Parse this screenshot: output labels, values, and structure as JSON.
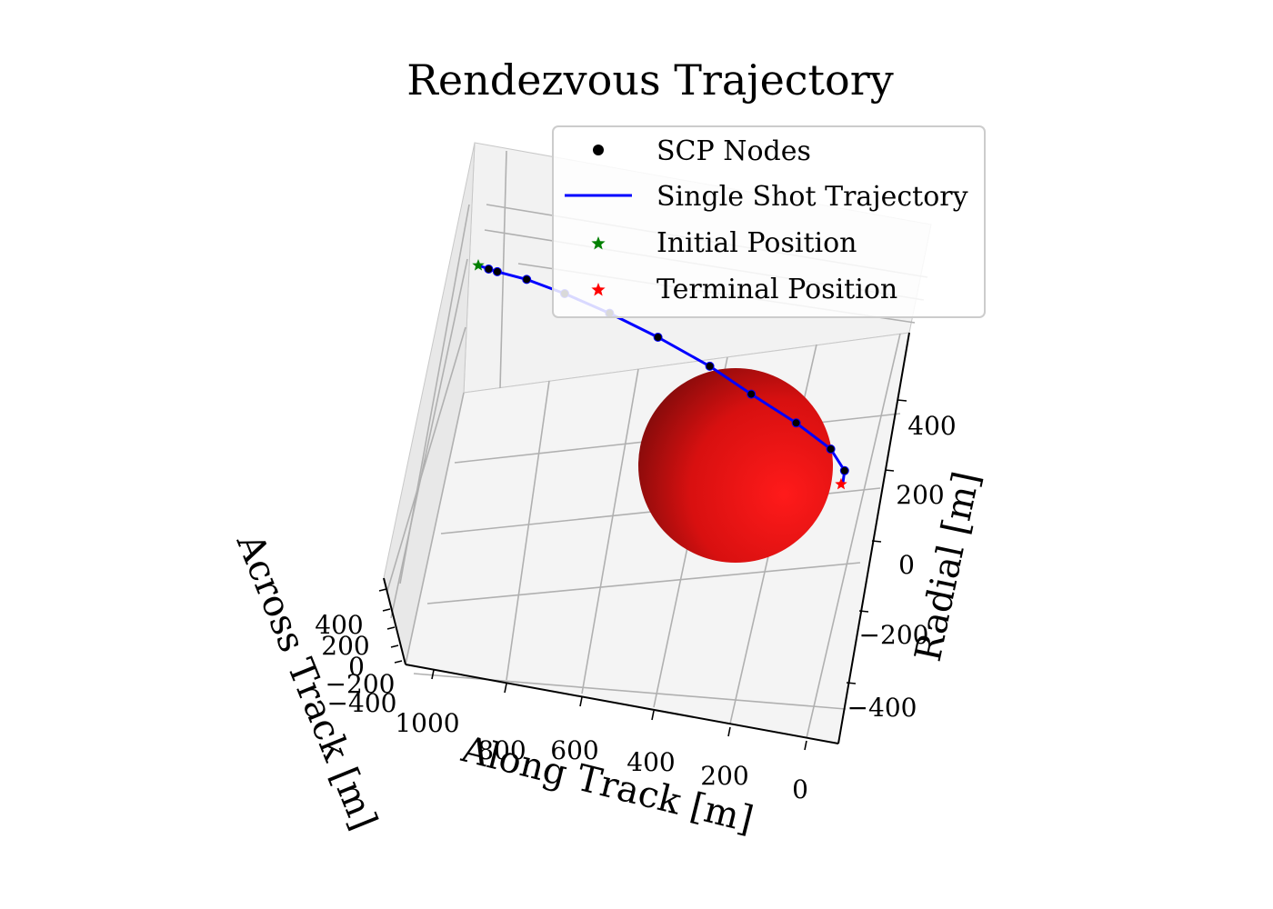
{
  "chart_data": {
    "type": "scatter",
    "projection": "3d",
    "title": "Rendezvous Trajectory",
    "xlabel": "Along Track [m]",
    "ylabel": "Across Track [m]",
    "zlabel": "Radial [m]",
    "x_ticks": [
      "1000",
      "800",
      "600",
      "400",
      "200",
      "0"
    ],
    "y_ticks": [
      "400",
      "200",
      "0",
      "−200",
      "−400"
    ],
    "z_ticks": [
      "400",
      "200",
      "0",
      "−200",
      "−400"
    ],
    "legend": {
      "placement": "upper-right",
      "entries": [
        {
          "label": "SCP Nodes",
          "marker": "dot",
          "color": "#000000"
        },
        {
          "label": "Single Shot Trajectory",
          "marker": "line",
          "color": "#0000ff"
        },
        {
          "label": "Initial Position",
          "marker": "star",
          "color": "#008000"
        },
        {
          "label": "Terminal Position",
          "marker": "star",
          "color": "#ff0000"
        }
      ]
    },
    "series": [
      {
        "name": "SCP Nodes",
        "points": [
          {
            "along": 1070,
            "radial": 400
          },
          {
            "along": 1045,
            "radial": 400
          },
          {
            "along": 960,
            "radial": 402
          },
          {
            "along": 850,
            "radial": 392
          },
          {
            "along": 720,
            "radial": 370
          },
          {
            "along": 580,
            "radial": 335
          },
          {
            "along": 430,
            "radial": 285
          },
          {
            "along": 310,
            "radial": 230
          },
          {
            "along": 180,
            "radial": 170
          },
          {
            "along": 80,
            "radial": 112
          },
          {
            "along": 40,
            "radial": 62
          }
        ]
      },
      {
        "name": "Single Shot Trajectory",
        "points": [
          {
            "along": 1100,
            "radial": 401
          },
          {
            "along": 1045,
            "radial": 400
          },
          {
            "along": 960,
            "radial": 402
          },
          {
            "along": 850,
            "radial": 392
          },
          {
            "along": 720,
            "radial": 370
          },
          {
            "along": 580,
            "radial": 335
          },
          {
            "along": 430,
            "radial": 285
          },
          {
            "along": 310,
            "radial": 230
          },
          {
            "along": 180,
            "radial": 170
          },
          {
            "along": 80,
            "radial": 112
          },
          {
            "along": 40,
            "radial": 62
          },
          {
            "along": 45,
            "radial": 32
          }
        ]
      },
      {
        "name": "Initial Position",
        "points": [
          {
            "along": 1100,
            "radial": 401
          }
        ]
      },
      {
        "name": "Terminal Position",
        "points": [
          {
            "along": 50,
            "radial": 30
          }
        ]
      }
    ],
    "keep_out_sphere": {
      "center_along": 310,
      "center_radial": 0,
      "radius": 300,
      "color": "#ff0000"
    }
  }
}
